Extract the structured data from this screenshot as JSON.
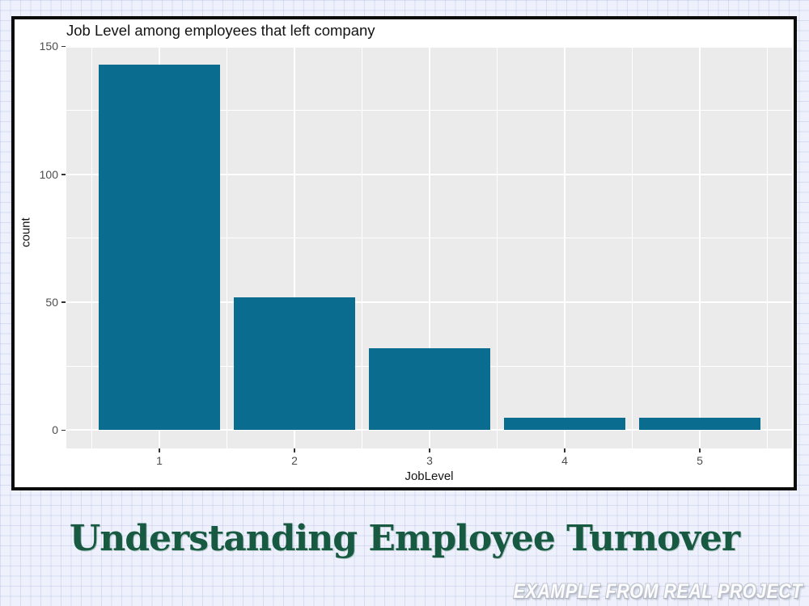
{
  "page": {
    "heading": "Understanding Employee Turnover",
    "watermark": "EXAMPLE FROM REAL PROJECT",
    "heading_color": "#185a41",
    "background_color": "#eef1fb"
  },
  "chart_data": {
    "type": "bar",
    "title": "Job Level among employees that left company",
    "xlabel": "JobLevel",
    "ylabel": "count",
    "categories": [
      "1",
      "2",
      "3",
      "4",
      "5"
    ],
    "values": [
      143,
      52,
      32,
      5,
      5
    ],
    "y_ticks": [
      0,
      50,
      100,
      150
    ],
    "y_minor_ticks": [
      25,
      75,
      125
    ],
    "ylim": [
      0,
      150
    ],
    "bar_color": "#0a6c8e",
    "panel_background": "#ebebeb",
    "gridline_color": "#ffffff",
    "tick_label_color": "#4d4d4d",
    "grid": "major and minor, white on gray panel",
    "legend": "none"
  }
}
